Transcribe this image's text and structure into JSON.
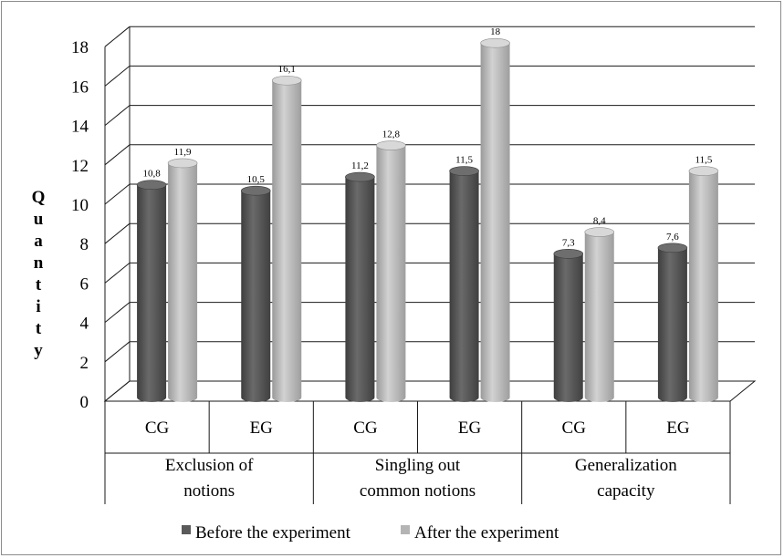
{
  "chart_data": {
    "type": "bar",
    "title": "",
    "ylabel": "Quantity",
    "ylim": [
      0,
      18
    ],
    "yticks": [
      0,
      2,
      4,
      6,
      8,
      10,
      12,
      14,
      16,
      18
    ],
    "grid": true,
    "groups": [
      {
        "label": "Exclusion of notions",
        "lines": [
          "Exclusion of",
          "notions"
        ]
      },
      {
        "label": "Singling out common notions",
        "lines": [
          "Singling out",
          "common notions"
        ]
      },
      {
        "label": "Generalization capacity",
        "lines": [
          "Generalization",
          "capacity"
        ]
      }
    ],
    "categories": [
      "CG",
      "EG",
      "CG",
      "EG",
      "CG",
      "EG"
    ],
    "series": [
      {
        "name": "Before the experiment",
        "color": "#5a5a5a",
        "values": [
          10.8,
          10.5,
          11.2,
          11.5,
          7.3,
          7.6
        ],
        "labels": [
          "10,8",
          "10,5",
          "11,2",
          "11,5",
          "7,3",
          "7,6"
        ]
      },
      {
        "name": "After the experiment",
        "color": "#b4b4b4",
        "values": [
          11.9,
          16.1,
          12.8,
          18,
          8.4,
          11.5
        ],
        "labels": [
          "11,9",
          "16,1",
          "12,8",
          "18",
          "8,4",
          "11,5"
        ]
      }
    ],
    "legend_position": "bottom"
  }
}
